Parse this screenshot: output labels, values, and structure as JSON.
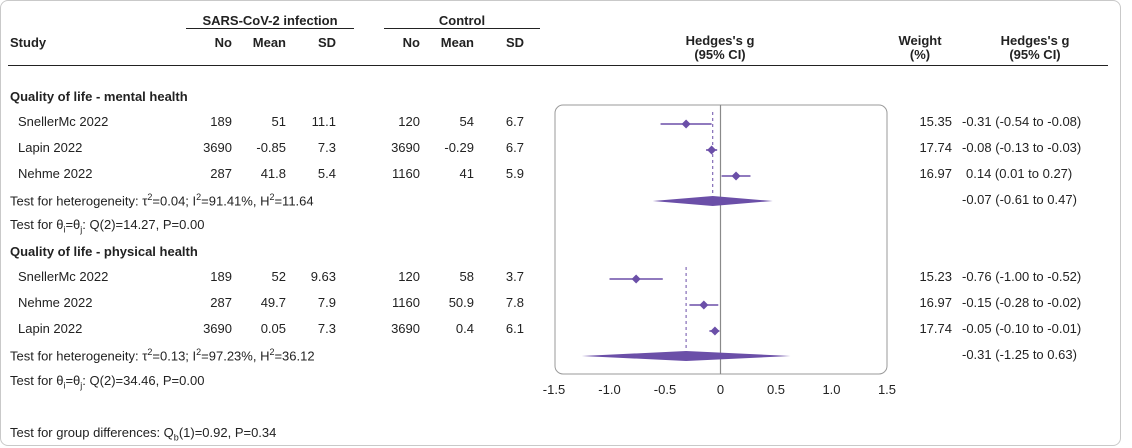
{
  "header": {
    "study": "Study",
    "group1": "SARS-CoV-2 infection",
    "group2": "Control",
    "cols": [
      "No",
      "Mean",
      "SD",
      "No",
      "Mean",
      "SD"
    ],
    "effect": "Hedges's g",
    "effect_ci": "(95% CI)",
    "weight": "Weight",
    "weight_unit": "(%)",
    "effect_right": "Hedges's g",
    "effect_right_ci": "(95% CI)"
  },
  "groups": [
    {
      "title": "Quality of life - mental health",
      "studies": [
        {
          "name": "SnellerMc 2022",
          "n1": "189",
          "mean1": "51",
          "sd1": "11.1",
          "n2": "120",
          "mean2": "54",
          "sd2": "6.7",
          "weight": "15.35",
          "ci_text": "-0.31 (-0.54 to -0.08)"
        },
        {
          "name": "Lapin 2022",
          "n1": "3690",
          "mean1": "-0.85",
          "sd1": "7.3",
          "n2": "3690",
          "mean2": "-0.29",
          "sd2": "6.7",
          "weight": "17.74",
          "ci_text": "-0.08 (-0.13 to -0.03)"
        },
        {
          "name": "Nehme 2022",
          "n1": "287",
          "mean1": "41.8",
          "sd1": "5.4",
          "n2": "1160",
          "mean2": "41",
          "sd2": "5.9",
          "weight": "16.97",
          "ci_text": "0.14 (0.01 to 0.27)"
        }
      ],
      "heterogeneity": {
        "prefix": "Test for heterogeneity: ",
        "tau": "τ",
        "tau_val": "=0.04; I",
        "i_val": "=91.41%, H",
        "h_val": "=11.64"
      },
      "theta_test": {
        "prefix": "Test for θ",
        "sub_i": "i",
        "eq": "=θ",
        "sub_j": "j",
        "rest": ": Q(2)=14.27, P=0.00"
      },
      "pooled_text": "-0.07 (-0.61 to 0.47)"
    },
    {
      "title": "Quality of life - physical health",
      "studies": [
        {
          "name": "SnellerMc 2022",
          "n1": "189",
          "mean1": "52",
          "sd1": "9.63",
          "n2": "120",
          "mean2": "58",
          "sd2": "3.7",
          "weight": "15.23",
          "ci_text": "-0.76 (-1.00 to -0.52)"
        },
        {
          "name": "Nehme 2022",
          "n1": "287",
          "mean1": "49.7",
          "sd1": "7.9",
          "n2": "1160",
          "mean2": "50.9",
          "sd2": "7.8",
          "weight": "16.97",
          "ci_text": "-0.15 (-0.28 to -0.02)"
        },
        {
          "name": "Lapin 2022",
          "n1": "3690",
          "mean1": "0.05",
          "sd1": "7.3",
          "n2": "3690",
          "mean2": "0.4",
          "sd2": "6.1",
          "weight": "17.74",
          "ci_text": "-0.05 (-0.10 to -0.01)"
        }
      ],
      "heterogeneity": {
        "prefix": "Test for heterogeneity: ",
        "tau": "τ",
        "tau_val": "=0.13; I",
        "i_val": "=97.23%, H",
        "h_val": "=36.12"
      },
      "theta_test": {
        "prefix": "Test for θ",
        "sub_i": "i",
        "eq": "=θ",
        "sub_j": "j",
        "rest": ": Q(2)=34.46, P=0.00"
      },
      "pooled_text": "-0.31 (-1.25 to 0.63)"
    }
  ],
  "group_diff": {
    "prefix": "Test for group differences: Q",
    "sub_b": "b",
    "rest": "(1)=0.92, P=0.34"
  },
  "chart_data": {
    "type": "scatter",
    "subtype": "forest",
    "xlim": [
      -1.5,
      1.5
    ],
    "ticks": [
      "-1.5",
      "-1.0",
      "-0.5",
      "0",
      "0.5",
      "1.0",
      "1.5"
    ],
    "tick_values": [
      -1.5,
      -1.0,
      -0.5,
      0,
      0.5,
      1.0,
      1.5
    ],
    "marker_color": "#6b4fa8",
    "groups": [
      {
        "name": "Quality of life - mental health",
        "points": [
          {
            "study": "SnellerMc 2022",
            "g": -0.31,
            "lo": -0.54,
            "hi": -0.08
          },
          {
            "study": "Lapin 2022",
            "g": -0.08,
            "lo": -0.13,
            "hi": -0.03
          },
          {
            "study": "Nehme 2022",
            "g": 0.14,
            "lo": 0.01,
            "hi": 0.27
          }
        ],
        "pooled": {
          "g": -0.07,
          "lo": -0.61,
          "hi": 0.47
        }
      },
      {
        "name": "Quality of life - physical health",
        "points": [
          {
            "study": "SnellerMc 2022",
            "g": -0.76,
            "lo": -1.0,
            "hi": -0.52
          },
          {
            "study": "Nehme 2022",
            "g": -0.15,
            "lo": -0.28,
            "hi": -0.02
          },
          {
            "study": "Lapin 2022",
            "g": -0.05,
            "lo": -0.1,
            "hi": -0.01
          }
        ],
        "pooled": {
          "g": -0.31,
          "lo": -1.25,
          "hi": 0.63
        }
      }
    ]
  }
}
